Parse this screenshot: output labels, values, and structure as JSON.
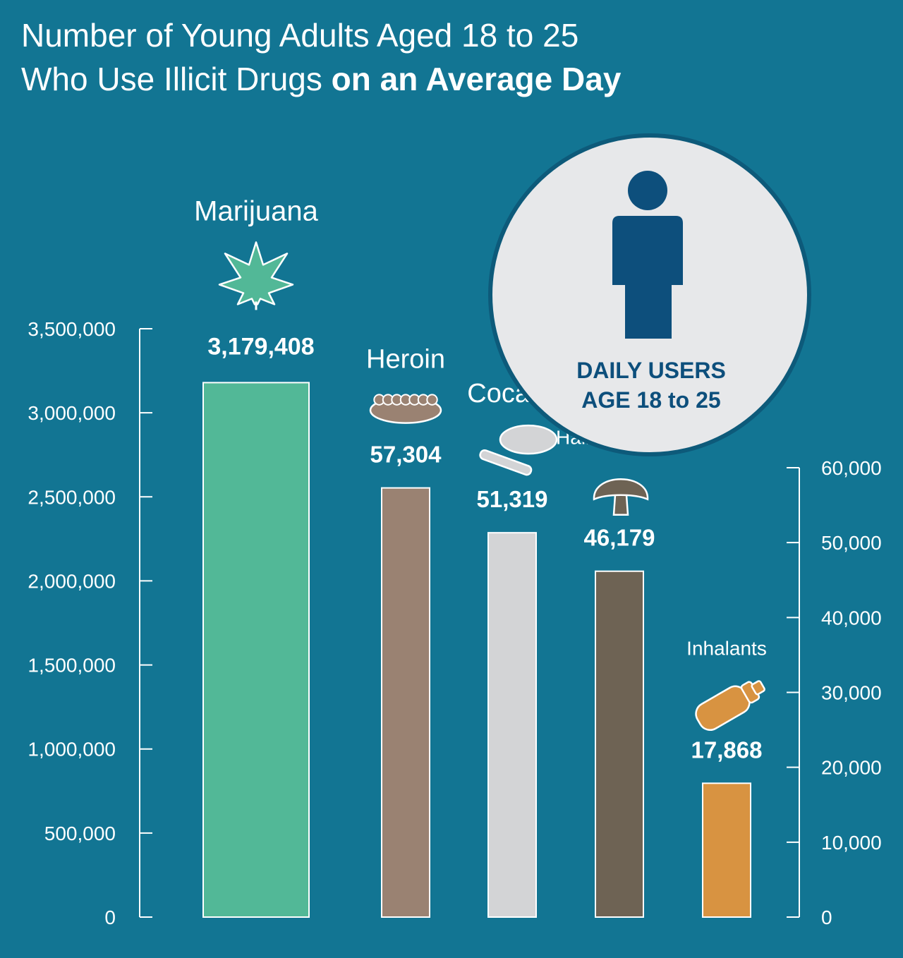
{
  "title": {
    "line1": "Number of Young Adults Aged 18 to 25",
    "line2_regular": "Who Use Illicit Drugs",
    "line2_bold": "on an Average Day"
  },
  "badge": {
    "line1": "DAILY USERS",
    "line2": "AGE 18 to 25",
    "icon": "person-icon"
  },
  "colors": {
    "background": "#127593",
    "badge_bg": "#e7e8ea",
    "badge_text": "#0d4f7c",
    "marijuana": "#52b897",
    "heroin": "#9a8272",
    "cocaine": "#d3d4d6",
    "hallucinogens": "#6e6354",
    "inhalants": "#d89341"
  },
  "chart_data": [
    {
      "type": "bar",
      "axis": "left",
      "categories": [
        "Marijuana"
      ],
      "values": [
        3179408
      ],
      "value_labels": [
        "3,179,408"
      ],
      "icons": [
        "cannabis-leaf-icon"
      ],
      "ylim": [
        0,
        3500000
      ],
      "yticks": [
        0,
        500000,
        1000000,
        1500000,
        2000000,
        2500000,
        3000000,
        3500000
      ],
      "ytick_labels": [
        "0",
        "500,000",
        "1,000,000",
        "1,500,000",
        "2,000,000",
        "2,500,000",
        "3,000,000",
        "3,500,000"
      ],
      "grid": false
    },
    {
      "type": "bar",
      "axis": "right",
      "categories": [
        "Heroin",
        "Cocaine",
        "Hallucinogens",
        "Inhalants"
      ],
      "values": [
        57304,
        51319,
        46179,
        17868
      ],
      "value_labels": [
        "57,304",
        "51,319",
        "46,179",
        "17,868"
      ],
      "icons": [
        "heroin-powder-icon",
        "cocaine-line-icon",
        "mushroom-icon",
        "inhalant-can-icon"
      ],
      "ylim": [
        0,
        60000
      ],
      "yticks": [
        0,
        10000,
        20000,
        30000,
        40000,
        50000,
        60000
      ],
      "ytick_labels": [
        "0",
        "10,000",
        "20,000",
        "30,000",
        "40,000",
        "50,000",
        "60,000"
      ],
      "grid": false
    }
  ]
}
